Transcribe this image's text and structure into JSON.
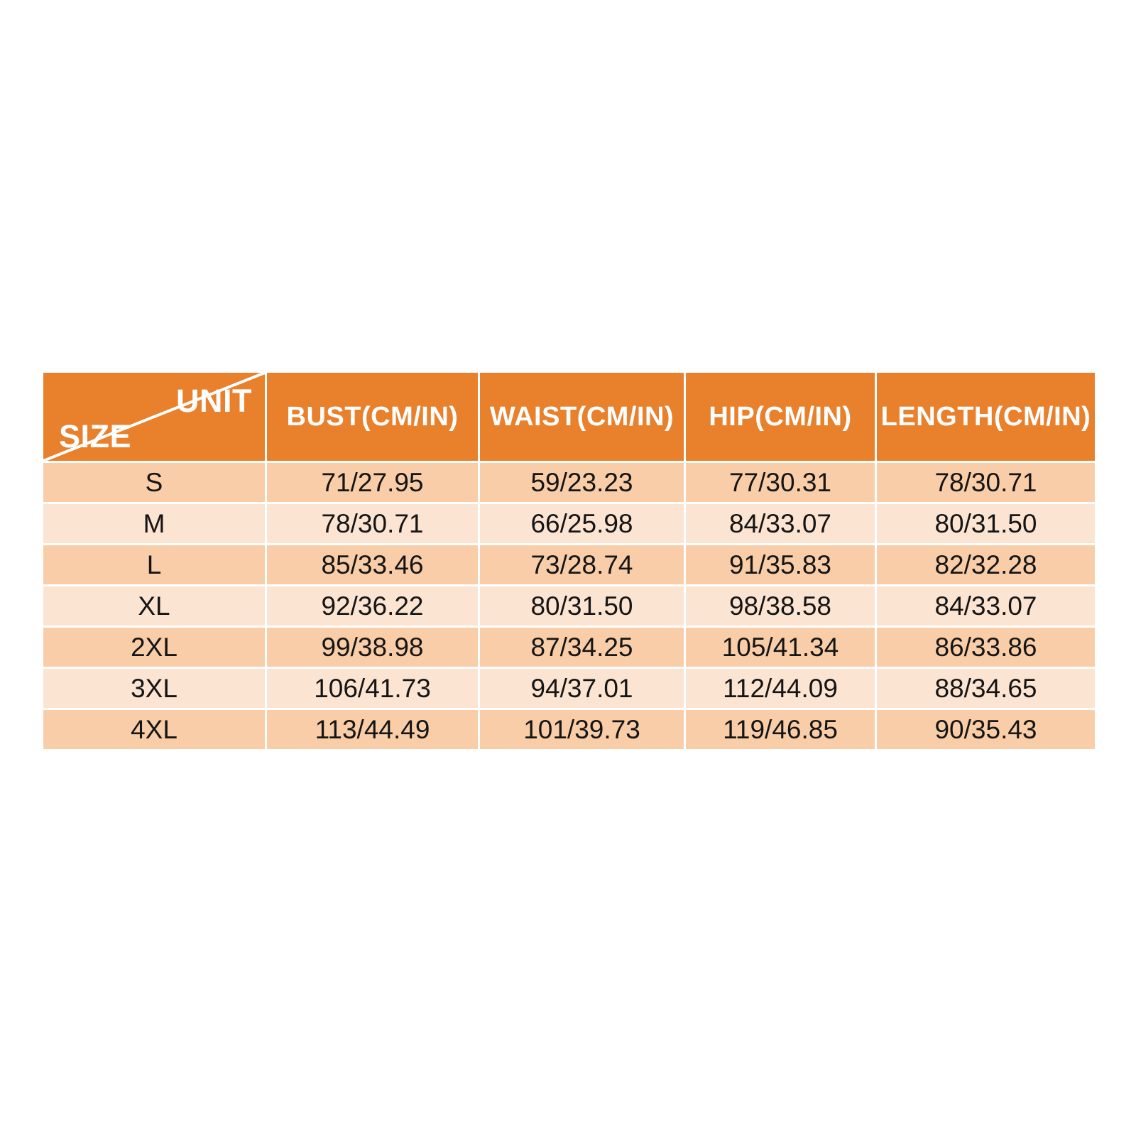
{
  "table": {
    "corner": {
      "unit_label": "UNIT",
      "size_label": "SIZE"
    },
    "columns": [
      "BUST(CM/IN)",
      "WAIST(CM/IN)",
      "HIP(CM/IN)",
      "LENGTH(CM/IN)"
    ],
    "rows": [
      [
        "S",
        "71/27.95",
        "59/23.23",
        "77/30.31",
        "78/30.71"
      ],
      [
        "M",
        "78/30.71",
        "66/25.98",
        "84/33.07",
        "80/31.50"
      ],
      [
        "L",
        "85/33.46",
        "73/28.74",
        "91/35.83",
        "82/32.28"
      ],
      [
        "XL",
        "92/36.22",
        "80/31.50",
        "98/38.58",
        "84/33.07"
      ],
      [
        "2XL",
        "99/38.98",
        "87/34.25",
        "105/41.34",
        "86/33.86"
      ],
      [
        "3XL",
        "106/41.73",
        "94/37.01",
        "112/44.09",
        "88/34.65"
      ],
      [
        "4XL",
        "113/44.49",
        "101/39.73",
        "119/46.85",
        "90/35.43"
      ]
    ]
  },
  "colors": {
    "header_bg": "#E8802C",
    "header_text": "#FFFFFF",
    "row_odd_bg": "#F8CDA8",
    "row_even_bg": "#FBE4D2",
    "body_text": "#151515",
    "page_bg": "#FFFFFF"
  },
  "chart_data": {
    "type": "table",
    "title": "Garment size chart (CM/IN)",
    "corner_labels": {
      "top_right": "UNIT",
      "bottom_left": "SIZE"
    },
    "columns": [
      "SIZE",
      "BUST(CM/IN)",
      "WAIST(CM/IN)",
      "HIP(CM/IN)",
      "LENGTH(CM/IN)"
    ],
    "rows": [
      {
        "size": "S",
        "bust_cm": 71,
        "bust_in": 27.95,
        "waist_cm": 59,
        "waist_in": 23.23,
        "hip_cm": 77,
        "hip_in": 30.31,
        "length_cm": 78,
        "length_in": 30.71
      },
      {
        "size": "M",
        "bust_cm": 78,
        "bust_in": 30.71,
        "waist_cm": 66,
        "waist_in": 25.98,
        "hip_cm": 84,
        "hip_in": 33.07,
        "length_cm": 80,
        "length_in": 31.5
      },
      {
        "size": "L",
        "bust_cm": 85,
        "bust_in": 33.46,
        "waist_cm": 73,
        "waist_in": 28.74,
        "hip_cm": 91,
        "hip_in": 35.83,
        "length_cm": 82,
        "length_in": 32.28
      },
      {
        "size": "XL",
        "bust_cm": 92,
        "bust_in": 36.22,
        "waist_cm": 80,
        "waist_in": 31.5,
        "hip_cm": 98,
        "hip_in": 38.58,
        "length_cm": 84,
        "length_in": 33.07
      },
      {
        "size": "2XL",
        "bust_cm": 99,
        "bust_in": 38.98,
        "waist_cm": 87,
        "waist_in": 34.25,
        "hip_cm": 105,
        "hip_in": 41.34,
        "length_cm": 86,
        "length_in": 33.86
      },
      {
        "size": "3XL",
        "bust_cm": 106,
        "bust_in": 41.73,
        "waist_cm": 94,
        "waist_in": 37.01,
        "hip_cm": 112,
        "hip_in": 44.09,
        "length_cm": 88,
        "length_in": 34.65
      },
      {
        "size": "4XL",
        "bust_cm": 113,
        "bust_in": 44.49,
        "waist_cm": 101,
        "waist_in": 39.73,
        "hip_cm": 119,
        "hip_in": 46.85,
        "length_cm": 90,
        "length_in": 35.43
      }
    ]
  }
}
